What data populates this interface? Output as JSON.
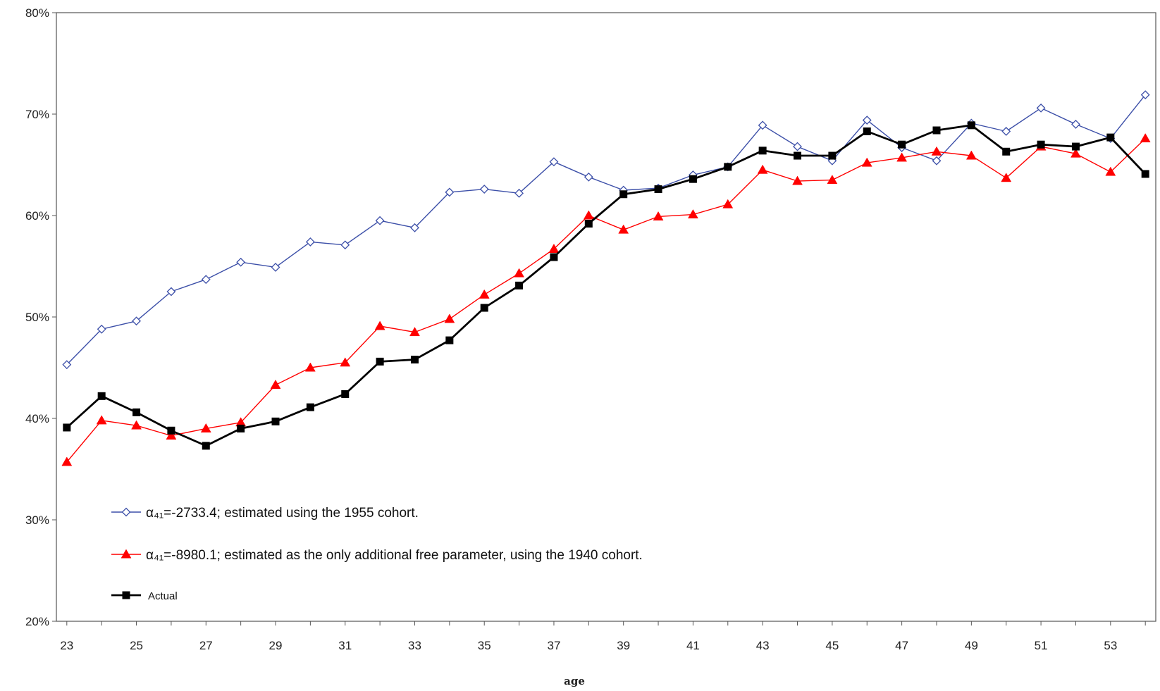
{
  "chart_data": {
    "type": "line",
    "xlabel": "age",
    "ylabel": "",
    "ylim": [
      0.2,
      0.8
    ],
    "xlim": [
      23,
      54
    ],
    "y_ticks": [
      "20%",
      "30%",
      "40%",
      "50%",
      "60%",
      "70%",
      "80%"
    ],
    "x_ticks": [
      "23",
      "25",
      "27",
      "29",
      "31",
      "33",
      "35",
      "37",
      "39",
      "41",
      "43",
      "45",
      "47",
      "49",
      "51",
      "53"
    ],
    "legend_placement": "bottom-left",
    "grid": false,
    "x": [
      23,
      24,
      25,
      26,
      27,
      28,
      29,
      30,
      31,
      32,
      33,
      34,
      35,
      36,
      37,
      38,
      39,
      40,
      41,
      42,
      43,
      44,
      45,
      46,
      47,
      48,
      49,
      50,
      51,
      52,
      53,
      54
    ],
    "series": [
      {
        "name": "α₄₁=-2733.4; estimated using the 1955 cohort.",
        "color": "#3c4fa8",
        "marker": "diamond-open",
        "values": [
          0.453,
          0.488,
          0.496,
          0.525,
          0.537,
          0.554,
          0.549,
          0.574,
          0.571,
          0.595,
          0.588,
          0.623,
          0.626,
          0.622,
          0.653,
          0.638,
          0.625,
          0.627,
          0.64,
          0.648,
          0.689,
          0.668,
          0.654,
          0.694,
          0.667,
          0.654,
          0.691,
          0.683,
          0.706,
          0.69,
          0.676,
          0.719
        ]
      },
      {
        "name": "α₄₁=-8980.1; estimated as the only additional free parameter, using the 1940 cohort.",
        "color": "#ff0000",
        "marker": "triangle",
        "values": [
          0.357,
          0.398,
          0.393,
          0.383,
          0.39,
          0.396,
          0.433,
          0.45,
          0.455,
          0.491,
          0.485,
          0.498,
          0.522,
          0.543,
          0.567,
          0.6,
          0.586,
          0.599,
          0.601,
          0.611,
          0.645,
          0.634,
          0.635,
          0.652,
          0.657,
          0.663,
          0.659,
          0.637,
          0.668,
          0.661,
          0.643,
          0.676
        ]
      },
      {
        "name": "Actual",
        "color": "#000000",
        "marker": "square",
        "values": [
          0.391,
          0.422,
          0.406,
          0.388,
          0.373,
          0.39,
          0.397,
          0.411,
          0.424,
          0.456,
          0.458,
          0.477,
          0.509,
          0.531,
          0.559,
          0.592,
          0.621,
          0.626,
          0.636,
          0.648,
          0.664,
          0.659,
          0.659,
          0.683,
          0.67,
          0.684,
          0.689,
          0.663,
          0.67,
          0.668,
          0.677,
          0.641
        ]
      }
    ]
  }
}
